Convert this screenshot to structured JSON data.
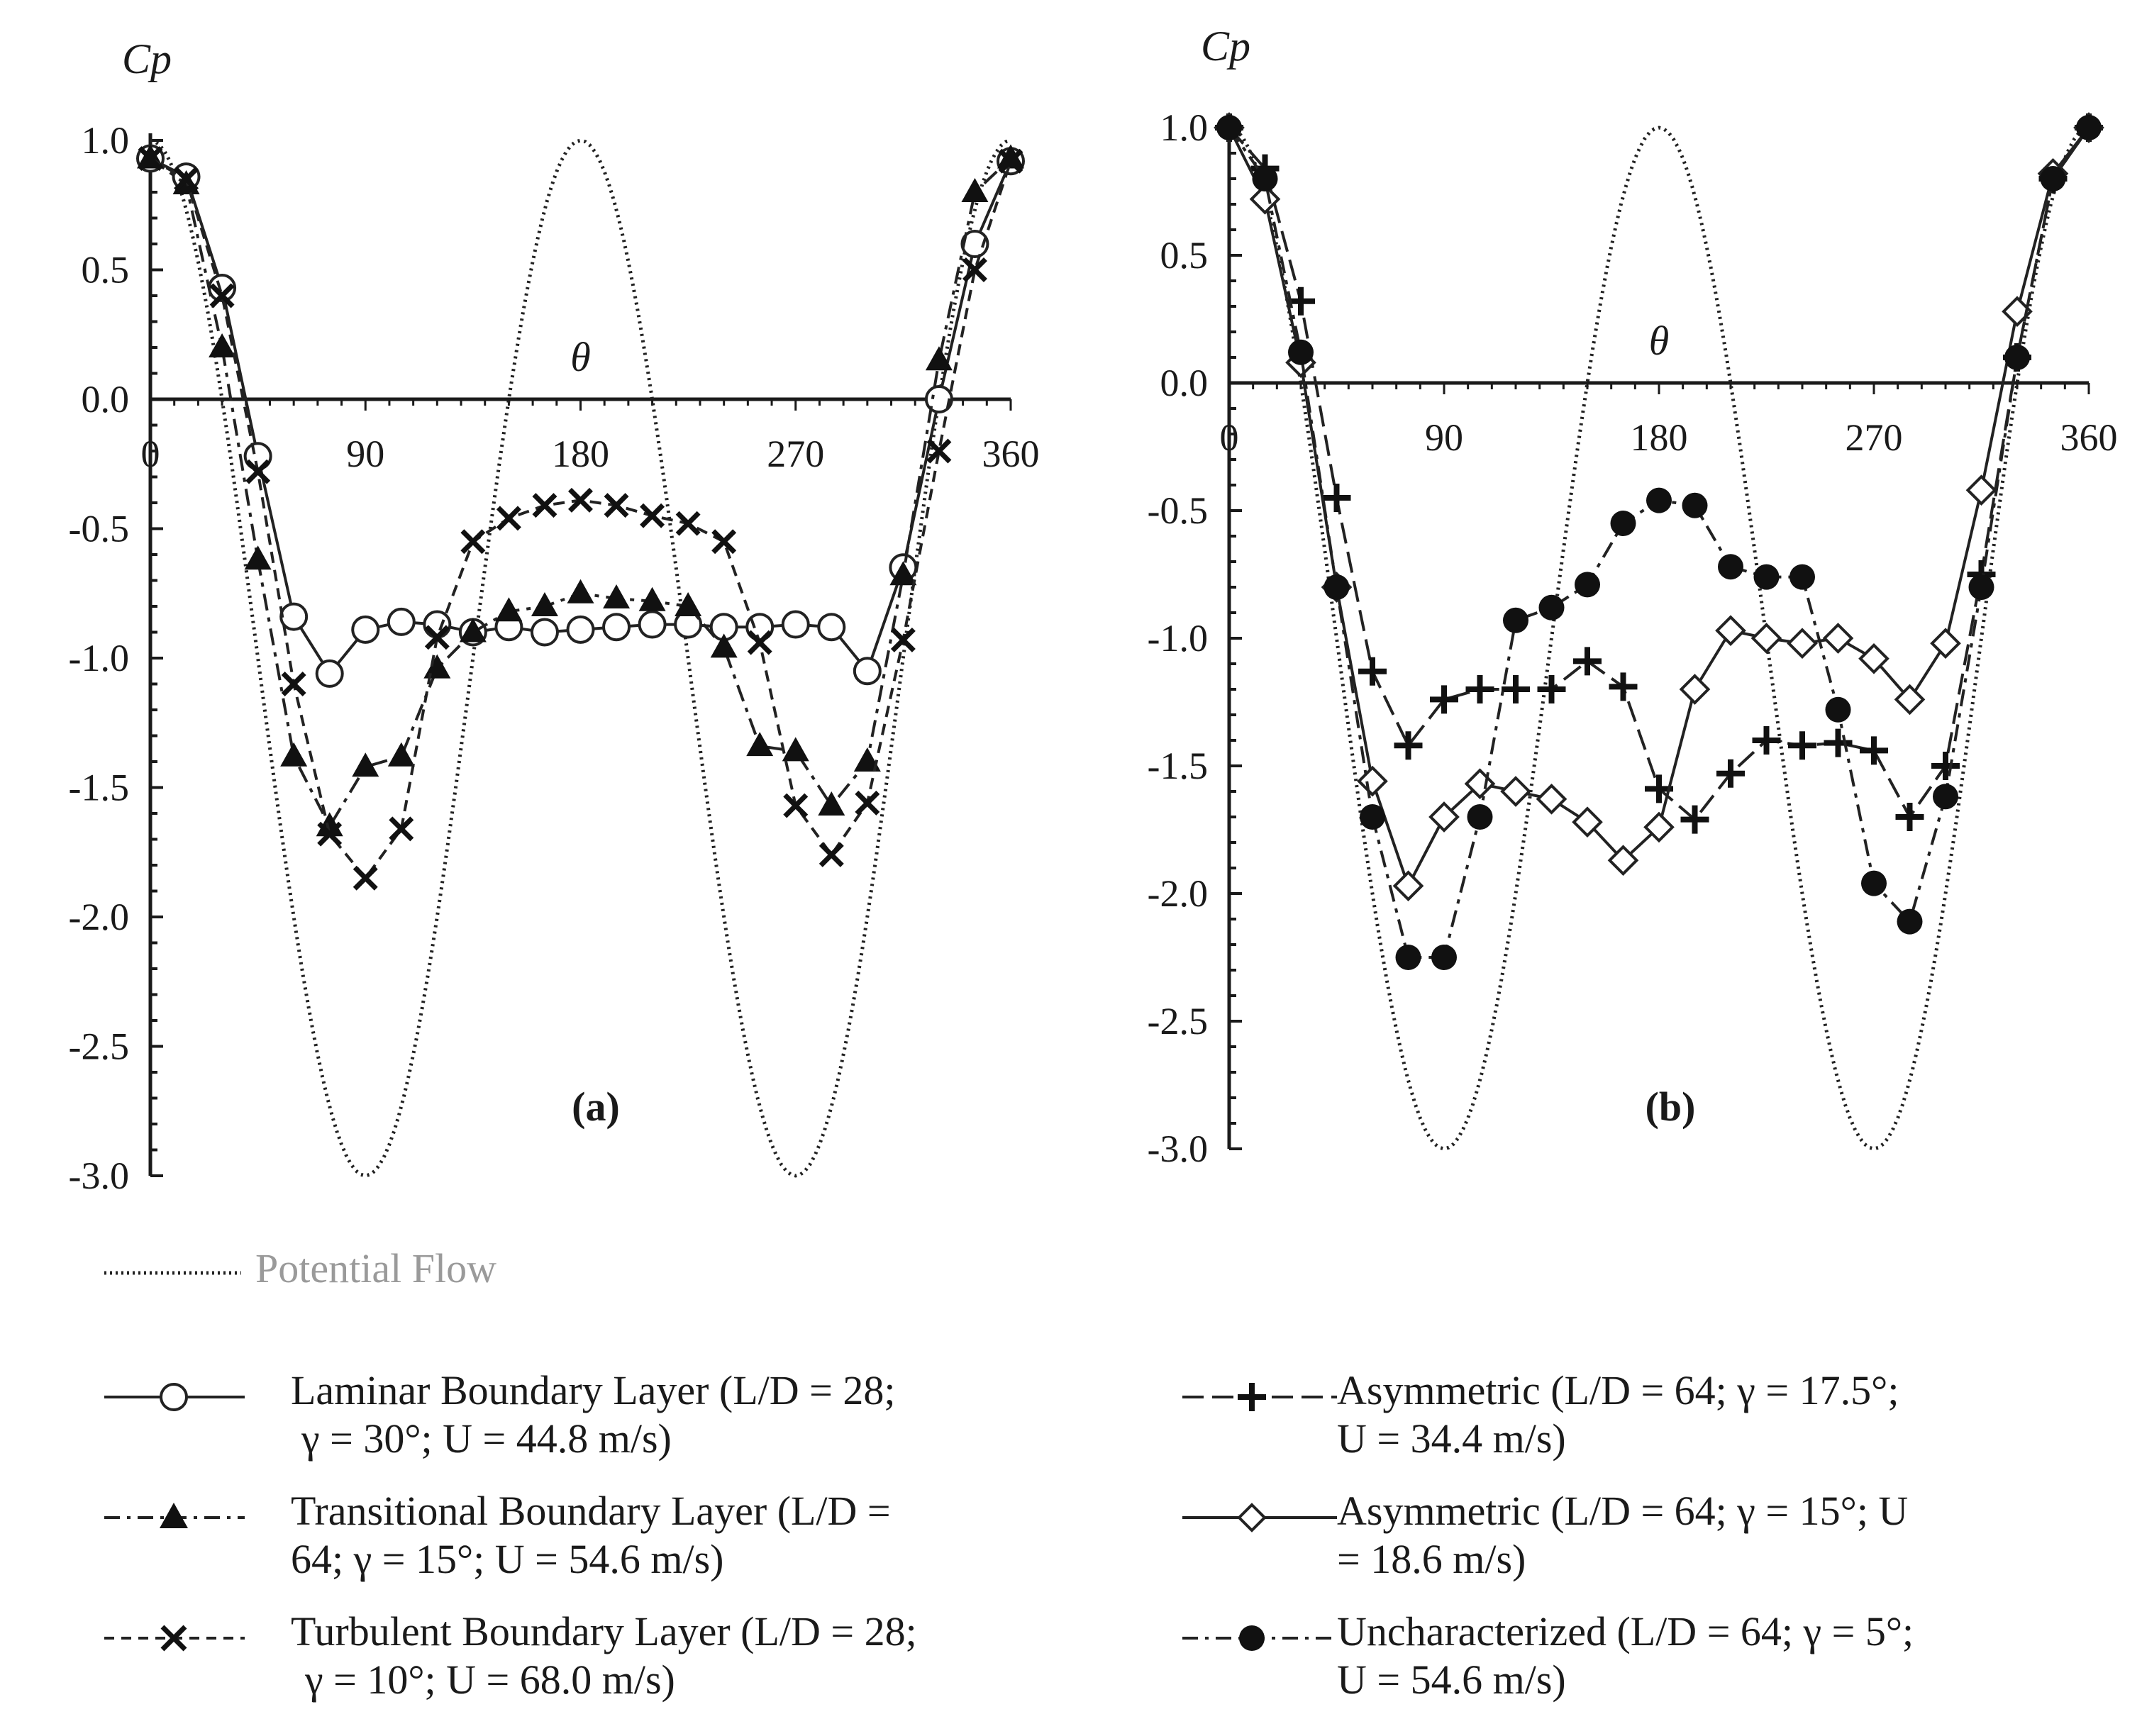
{
  "chart_data": [
    {
      "panel": "(a)",
      "type": "line",
      "ylabel": "Cp",
      "xlabel": "θ",
      "xlim": [
        0,
        360
      ],
      "ylim": [
        -3.0,
        1.0
      ],
      "xticks": [
        0,
        90,
        180,
        270,
        360
      ],
      "yticks": [
        1.0,
        0.5,
        0.0,
        -0.5,
        -1.0,
        -1.5,
        -2.0,
        -2.5,
        -3.0
      ],
      "ytick_labels": [
        "1.0",
        "0.5",
        "0.0",
        "-0.5",
        "-1.0",
        "-1.5",
        "-2.0",
        "-2.5",
        "-3.0"
      ],
      "series": [
        {
          "name": "Potential Flow",
          "style": "dotted",
          "marker": "none",
          "function": "1-4sin^2(theta)"
        },
        {
          "name": "Laminar Boundary Layer",
          "style": "solid",
          "marker": "circle-open",
          "x": [
            0,
            15,
            30,
            45,
            60,
            75,
            90,
            105,
            120,
            135,
            150,
            165,
            180,
            195,
            210,
            225,
            240,
            255,
            270,
            285,
            300,
            315,
            330,
            345,
            360
          ],
          "y": [
            0.93,
            0.86,
            0.43,
            -0.22,
            -0.84,
            -1.06,
            -0.89,
            -0.86,
            -0.87,
            -0.9,
            -0.88,
            -0.9,
            -0.89,
            -0.88,
            -0.87,
            -0.87,
            -0.88,
            -0.88,
            -0.87,
            -0.88,
            -1.05,
            -0.65,
            0.0,
            0.6,
            0.92
          ]
        },
        {
          "name": "Transitional Boundary Layer",
          "style": "dashdot",
          "marker": "triangle-filled",
          "x": [
            0,
            15,
            30,
            45,
            60,
            75,
            90,
            105,
            120,
            135,
            150,
            165,
            180,
            195,
            210,
            225,
            240,
            255,
            270,
            285,
            300,
            315,
            330,
            345,
            360
          ],
          "y": [
            0.93,
            0.83,
            0.2,
            -0.62,
            -1.38,
            -1.65,
            -1.42,
            -1.38,
            -1.04,
            -0.9,
            -0.82,
            -0.8,
            -0.75,
            -0.77,
            -0.78,
            -0.8,
            -0.96,
            -1.34,
            -1.36,
            -1.57,
            -1.4,
            -0.68,
            0.15,
            0.8,
            0.93
          ]
        },
        {
          "name": "Turbulent Boundary Layer",
          "style": "dashed",
          "marker": "x",
          "x": [
            0,
            15,
            30,
            45,
            60,
            75,
            90,
            105,
            120,
            135,
            150,
            165,
            180,
            195,
            210,
            225,
            240,
            255,
            270,
            285,
            300,
            315,
            330,
            345,
            360
          ],
          "y": [
            0.93,
            0.85,
            0.4,
            -0.28,
            -1.1,
            -1.68,
            -1.85,
            -1.66,
            -0.92,
            -0.55,
            -0.46,
            -0.41,
            -0.39,
            -0.41,
            -0.45,
            -0.48,
            -0.55,
            -0.94,
            -1.57,
            -1.76,
            -1.56,
            -0.93,
            -0.2,
            0.5,
            0.92
          ]
        }
      ]
    },
    {
      "panel": "(b)",
      "type": "line",
      "ylabel": "Cp",
      "xlabel": "θ",
      "xlim": [
        0,
        360
      ],
      "ylim": [
        -3.0,
        1.0
      ],
      "xticks": [
        0,
        90,
        180,
        270,
        360
      ],
      "yticks": [
        1.0,
        0.5,
        0.0,
        -0.5,
        -1.0,
        -1.5,
        -2.0,
        -2.5,
        -3.0
      ],
      "ytick_labels": [
        "1.0",
        "0.5",
        "0.0",
        "-0.5",
        "-1.0",
        "-1.5",
        "-2.0",
        "-2.5",
        "-3.0"
      ],
      "series": [
        {
          "name": "Potential Flow",
          "style": "dotted",
          "marker": "none",
          "function": "1-4sin^2(theta)"
        },
        {
          "name": "Asymmetric (L/D = 64; γ = 17.5°)",
          "style": "longdash",
          "marker": "plus",
          "x": [
            0,
            15,
            30,
            45,
            60,
            75,
            90,
            105,
            120,
            135,
            150,
            165,
            180,
            195,
            210,
            225,
            240,
            255,
            270,
            285,
            300,
            315,
            330,
            345,
            360
          ],
          "y": [
            1.0,
            0.84,
            0.32,
            -0.45,
            -1.13,
            -1.42,
            -1.24,
            -1.2,
            -1.2,
            -1.2,
            -1.09,
            -1.19,
            -1.59,
            -1.71,
            -1.53,
            -1.4,
            -1.42,
            -1.41,
            -1.44,
            -1.7,
            -1.5,
            -0.75,
            0.1,
            0.8,
            1.0
          ]
        },
        {
          "name": "Asymmetric (L/D = 64; γ = 15°)",
          "style": "solid",
          "marker": "diamond-open",
          "x": [
            0,
            15,
            30,
            45,
            60,
            75,
            90,
            105,
            120,
            135,
            150,
            165,
            180,
            195,
            210,
            225,
            240,
            255,
            270,
            285,
            300,
            315,
            330,
            345,
            360
          ],
          "y": [
            1.0,
            0.72,
            0.08,
            -0.8,
            -1.56,
            -1.97,
            -1.7,
            -1.57,
            -1.6,
            -1.63,
            -1.72,
            -1.87,
            -1.74,
            -1.2,
            -0.97,
            -1.0,
            -1.02,
            -1.0,
            -1.08,
            -1.24,
            -1.02,
            -0.42,
            0.28,
            0.82,
            1.0
          ]
        },
        {
          "name": "Uncharacterized (L/D = 64; γ = 5°)",
          "style": "dashdot",
          "marker": "circle-filled",
          "x": [
            0,
            15,
            30,
            45,
            60,
            75,
            90,
            105,
            120,
            135,
            150,
            165,
            180,
            195,
            210,
            225,
            240,
            255,
            270,
            285,
            300,
            315,
            330,
            345,
            360
          ],
          "y": [
            1.0,
            0.8,
            0.12,
            -0.8,
            -1.7,
            -2.25,
            -2.25,
            -1.7,
            -0.93,
            -0.88,
            -0.79,
            -0.55,
            -0.46,
            -0.48,
            -0.72,
            -0.76,
            -0.76,
            -1.28,
            -1.96,
            -2.11,
            -1.62,
            -0.8,
            0.1,
            0.8,
            1.0
          ]
        }
      ]
    }
  ],
  "legend": {
    "potential": "Potential Flow",
    "laminar_1": "Laminar Boundary Layer (L/D = 28;",
    "laminar_2": "γ  = 30°; U = 44.8 m/s)",
    "transitional_1": "Transitional Boundary Layer (L/D =",
    "transitional_2": "64;  γ = 15°; U = 54.6 m/s)",
    "turbulent_1": "Turbulent Boundary Layer (L/D = 28;",
    "turbulent_2": "γ = 10°; U = 68.0 m/s)",
    "asym175_1": "Asymmetric (L/D = 64;  γ  = 17.5°;",
    "asym175_2": "U = 34.4 m/s)",
    "asym15_1": "Asymmetric (L/D = 64;  γ  = 15°; U",
    "asym15_2": "= 18.6 m/s)",
    "uncharacterized_1": "Uncharacterized (L/D = 64;  γ  = 5°;",
    "uncharacterized_2": "U = 54.6 m/s)"
  }
}
